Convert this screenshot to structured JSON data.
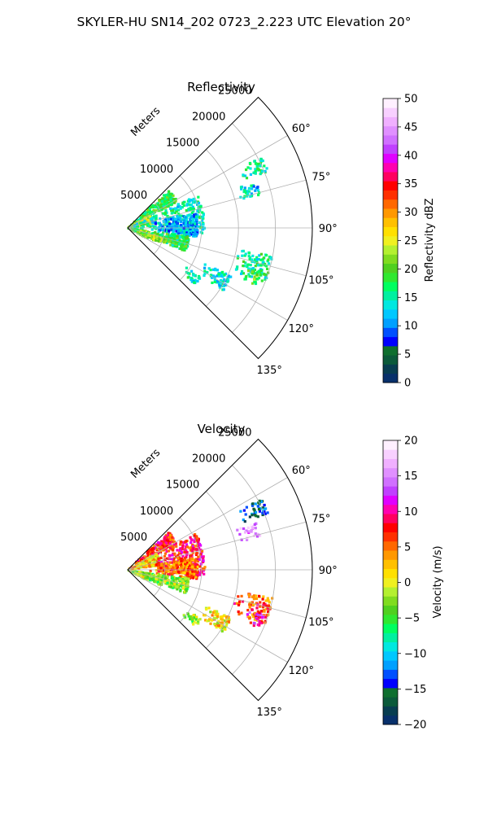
{
  "title": "SKYLER-HU  SN14_202  0723_2.223 UTC Elevation 20°",
  "chart_data": [
    {
      "type": "heatmap",
      "projection": "polar-sector",
      "title": "Reflectivity",
      "radial_label": "Meters",
      "r_ticks": [
        "5000",
        "10000",
        "15000",
        "20000",
        "25000"
      ],
      "r_values": [
        5000,
        10000,
        15000,
        20000,
        25000
      ],
      "rlim": [
        0,
        25000
      ],
      "theta_ticks": [
        "60°",
        "75°",
        "90°",
        "105°",
        "120°",
        "135°"
      ],
      "theta_values": [
        60,
        75,
        90,
        105,
        120,
        135
      ],
      "theta_range": [
        45,
        135
      ],
      "grid": true,
      "colorbar": {
        "label": "Reflectivity dBZ",
        "min": 0,
        "max": 50,
        "ticks": [
          "0",
          "5",
          "10",
          "15",
          "20",
          "25",
          "30",
          "35",
          "40",
          "45",
          "50"
        ],
        "tick_values": [
          0,
          5,
          10,
          15,
          20,
          25,
          30,
          35,
          40,
          45,
          50
        ],
        "colors": [
          "#08306b",
          "#083d50",
          "#0b5a3a",
          "#0f6f2f",
          "#0000ff",
          "#0050ff",
          "#00a0ff",
          "#00c8ff",
          "#00e8e0",
          "#00f0a0",
          "#00ff60",
          "#30e830",
          "#50d020",
          "#80dc20",
          "#b4f030",
          "#f0f020",
          "#ffe000",
          "#ffc000",
          "#ff9800",
          "#ff6800",
          "#ff3000",
          "#ff0000",
          "#ff0060",
          "#ff00b0",
          "#e000ff",
          "#c040ff",
          "#d070ff",
          "#e090ff",
          "#f0b0ff",
          "#f8d0ff",
          "#fff0ff"
        ]
      },
      "clusters": [
        {
          "theta": [
            48,
            62
          ],
          "r": [
            0,
            7600
          ],
          "value": 18
        },
        {
          "theta": [
            60,
            80
          ],
          "r": [
            0,
            3500
          ],
          "value": 24
        },
        {
          "theta": [
            65,
            95
          ],
          "r": [
            0,
            10500
          ],
          "value": 15
        },
        {
          "theta": [
            78,
            98
          ],
          "r": [
            3500,
            9500
          ],
          "value": 11
        },
        {
          "theta": [
            98,
            112
          ],
          "r": [
            1500,
            8500
          ],
          "value": 18
        },
        {
          "theta": [
            105,
            115
          ],
          "r": [
            2500,
            5500
          ],
          "value": 23
        },
        {
          "theta": [
            100,
            118
          ],
          "r": [
            0,
            3000
          ],
          "value": 21
        },
        {
          "theta": [
            62,
            68
          ],
          "r": [
            16500,
            20500
          ],
          "value": 16
        },
        {
          "theta": [
            70,
            76
          ],
          "r": [
            15500,
            18500
          ],
          "value": 13
        },
        {
          "theta": [
            101,
            112
          ],
          "r": [
            15000,
            20000
          ],
          "value": 16
        },
        {
          "theta": [
            108,
            114
          ],
          "r": [
            17000,
            19000
          ],
          "value": 19
        },
        {
          "theta": [
            115,
            123
          ],
          "r": [
            11000,
            15500
          ],
          "value": 14
        },
        {
          "theta": [
            124,
            130
          ],
          "r": [
            9500,
            12000
          ],
          "value": 15
        }
      ]
    },
    {
      "type": "heatmap",
      "projection": "polar-sector",
      "title": "Velocity",
      "radial_label": "Meters",
      "r_ticks": [
        "5000",
        "10000",
        "15000",
        "20000",
        "25000"
      ],
      "r_values": [
        5000,
        10000,
        15000,
        20000,
        25000
      ],
      "rlim": [
        0,
        25000
      ],
      "theta_ticks": [
        "60°",
        "75°",
        "90°",
        "105°",
        "120°",
        "135°"
      ],
      "theta_values": [
        60,
        75,
        90,
        105,
        120,
        135
      ],
      "theta_range": [
        45,
        135
      ],
      "grid": true,
      "colorbar": {
        "label": "Velocity (m/s)",
        "min": -20,
        "max": 20,
        "ticks": [
          "−20",
          "−15",
          "−10",
          "−5",
          "0",
          "5",
          "10",
          "15",
          "20"
        ],
        "tick_values": [
          -20,
          -15,
          -10,
          -5,
          0,
          5,
          10,
          15,
          20
        ],
        "colors": [
          "#08306b",
          "#083d50",
          "#0b5a3a",
          "#0f6f2f",
          "#0000ff",
          "#0050ff",
          "#00a0ff",
          "#00c8ff",
          "#00e8e0",
          "#00f0a0",
          "#00ff60",
          "#30e830",
          "#50d020",
          "#80dc20",
          "#b4f030",
          "#f0f020",
          "#ffe000",
          "#ffc000",
          "#ff9800",
          "#ff6800",
          "#ff3000",
          "#ff0000",
          "#ff0060",
          "#ff00b0",
          "#e000ff",
          "#c040ff",
          "#d070ff",
          "#e090ff",
          "#f0b0ff",
          "#f8d0ff",
          "#fff0ff"
        ]
      },
      "clusters": [
        {
          "theta": [
            48,
            62
          ],
          "r": [
            0,
            7600
          ],
          "value": 7
        },
        {
          "theta": [
            60,
            82
          ],
          "r": [
            0,
            4500
          ],
          "value": 2
        },
        {
          "theta": [
            62,
            95
          ],
          "r": [
            3500,
            10500
          ],
          "value": 8
        },
        {
          "theta": [
            80,
            98
          ],
          "r": [
            3000,
            9500
          ],
          "value": 5
        },
        {
          "theta": [
            98,
            112
          ],
          "r": [
            1500,
            8500
          ],
          "value": -3
        },
        {
          "theta": [
            105,
            115
          ],
          "r": [
            1500,
            5000
          ],
          "value": -4
        },
        {
          "theta": [
            100,
            118
          ],
          "r": [
            0,
            3000
          ],
          "value": -2
        },
        {
          "theta": [
            62,
            68
          ],
          "r": [
            16500,
            20500
          ],
          "value": -14
        },
        {
          "theta": [
            70,
            76
          ],
          "r": [
            15500,
            18500
          ],
          "value": 16
        },
        {
          "theta": [
            101,
            112
          ],
          "r": [
            15000,
            20000
          ],
          "value": 6
        },
        {
          "theta": [
            108,
            114
          ],
          "r": [
            17000,
            19500
          ],
          "value": 11
        },
        {
          "theta": [
            115,
            123
          ],
          "r": [
            11000,
            15500
          ],
          "value": 1
        },
        {
          "theta": [
            124,
            130
          ],
          "r": [
            9500,
            12000
          ],
          "value": -3
        }
      ]
    }
  ]
}
